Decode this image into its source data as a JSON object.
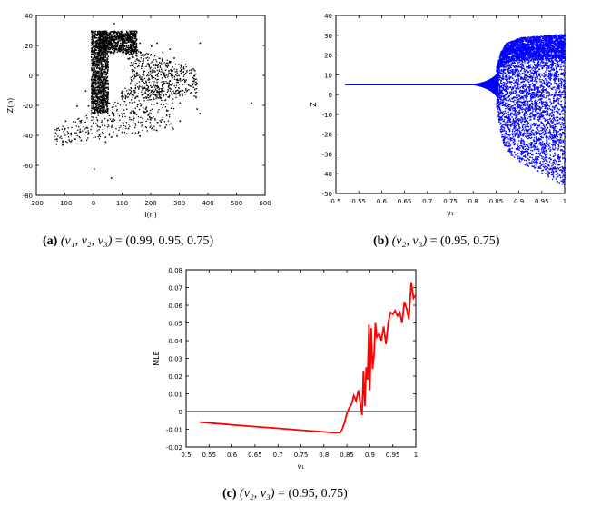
{
  "captions": {
    "a": {
      "label": "(a)",
      "vars": "(ν₁, ν₂, ν₃)",
      "eq": " = ",
      "vals": "(0.99, 0.95, 0.75)"
    },
    "b": {
      "label": "(b)",
      "vars": "(ν₂, ν₃)",
      "eq": " = ",
      "vals": "(0.95, 0.75)"
    },
    "c": {
      "label": "(c)",
      "vars": "(ν₂, ν₃)",
      "eq": " = ",
      "vals": "(0.95, 0.75)"
    }
  },
  "chart_data": [
    {
      "id": "a",
      "type": "scatter",
      "title": "",
      "xlabel": "I(n)",
      "ylabel": "Z(n)",
      "xlim": [
        -200,
        600
      ],
      "ylim": [
        -80,
        40
      ],
      "xticks": [
        "-200",
        "-100",
        "0",
        "100",
        "200",
        "300",
        "400",
        "500",
        "600"
      ],
      "yticks": [
        "-80",
        "-60",
        "-40",
        "-20",
        "0",
        "20",
        "40"
      ],
      "color": "#000000",
      "points": [
        [
          0,
          -10
        ],
        [
          -20,
          -20
        ],
        [
          -50,
          -30
        ],
        [
          -90,
          -38
        ],
        [
          -110,
          -44
        ],
        [
          -130,
          -42
        ],
        [
          -100,
          -30
        ],
        [
          -60,
          -20
        ],
        [
          -30,
          -10
        ],
        [
          0,
          0
        ],
        [
          10,
          10
        ],
        [
          15,
          20
        ],
        [
          20,
          28
        ],
        [
          40,
          30
        ],
        [
          80,
          28
        ],
        [
          120,
          24
        ],
        [
          160,
          22
        ],
        [
          200,
          20
        ],
        [
          240,
          16
        ],
        [
          280,
          12
        ],
        [
          320,
          8
        ],
        [
          340,
          4
        ],
        [
          350,
          0
        ],
        [
          330,
          -6
        ],
        [
          300,
          -10
        ],
        [
          260,
          -14
        ],
        [
          220,
          -18
        ],
        [
          180,
          -22
        ],
        [
          140,
          -24
        ],
        [
          100,
          -26
        ],
        [
          60,
          -30
        ],
        [
          20,
          -34
        ],
        [
          -20,
          -38
        ],
        [
          -70,
          -42
        ],
        [
          -110,
          -46
        ],
        [
          100,
          -10
        ],
        [
          150,
          -5
        ],
        [
          200,
          0
        ],
        [
          250,
          4
        ],
        [
          300,
          -2
        ],
        [
          120,
          -35
        ],
        [
          80,
          -40
        ],
        [
          40,
          -44
        ],
        [
          60,
          -68
        ],
        [
          0,
          -62
        ],
        [
          220,
          22
        ],
        [
          265,
          18
        ],
        [
          300,
          -18
        ],
        [
          170,
          10
        ],
        [
          130,
          15
        ],
        [
          90,
          18
        ],
        [
          50,
          22
        ],
        [
          30,
          5
        ],
        [
          35,
          -5
        ],
        [
          360,
          -5
        ],
        [
          300,
          -30
        ],
        [
          200,
          -28
        ],
        [
          160,
          -40
        ],
        [
          360,
          -22
        ],
        [
          370,
          -25
        ],
        [
          70,
          35
        ],
        [
          370,
          22
        ],
        [
          550,
          -18
        ]
      ],
      "cloud": {
        "vertical_band": {
          "x": [
            -10,
            50
          ],
          "y": [
            -25,
            30
          ]
        },
        "top_mass": {
          "x": [
            15,
            150
          ],
          "y": [
            15,
            30
          ]
        },
        "right_lobe": {
          "x": [
            90,
            360
          ],
          "y": [
            -15,
            22
          ]
        },
        "lower_tail": {
          "x": [
            -140,
            280
          ],
          "y": [
            -46,
            -5
          ]
        },
        "hole_center": [
          90,
          3
        ],
        "hole_radius": [
          38,
          13
        ]
      }
    },
    {
      "id": "b",
      "type": "scatter",
      "title": "",
      "xlabel": "ν₁",
      "ylabel": "Z",
      "xlim": [
        0.5,
        1.0
      ],
      "ylim": [
        -50,
        40
      ],
      "xticks": [
        "0.5",
        "0.55",
        "0.6",
        "0.65",
        "0.7",
        "0.75",
        "0.8",
        "0.85",
        "0.9",
        "0.95",
        "1"
      ],
      "yticks": [
        "-50",
        "-40",
        "-30",
        "-20",
        "-10",
        "0",
        "10",
        "20",
        "30",
        "40"
      ],
      "color": "#0000ff",
      "fixed_point_z": 5,
      "line_start": 0.52,
      "bifurcation_at": 0.855,
      "envelope": {
        "nu": [
          0.85,
          0.86,
          0.87,
          0.9,
          0.95,
          1.0
        ],
        "upper": [
          14,
          22,
          26,
          29,
          30,
          31
        ],
        "lower": [
          -6,
          -20,
          -28,
          -34,
          -40,
          -46
        ]
      }
    },
    {
      "id": "c",
      "type": "line",
      "title": "",
      "xlabel": "ν₁",
      "ylabel": "MLE",
      "xlim": [
        0.5,
        1.0
      ],
      "ylim": [
        -0.02,
        0.08
      ],
      "xticks": [
        "0.5",
        "0.55",
        "0.6",
        "0.65",
        "0.7",
        "0.75",
        "0.8",
        "0.85",
        "0.9",
        "0.95",
        "1"
      ],
      "yticks": [
        "-0.02",
        "-0.01",
        "0",
        "0.01",
        "0.02",
        "0.03",
        "0.04",
        "0.05",
        "0.06",
        "0.07",
        "0.08"
      ],
      "series": [
        {
          "name": "",
          "color": "#ff0000",
          "x": [
            0.53,
            0.6,
            0.65,
            0.7,
            0.75,
            0.8,
            0.825,
            0.835,
            0.84,
            0.845,
            0.85,
            0.855,
            0.86,
            0.865,
            0.87,
            0.875,
            0.88,
            0.883,
            0.886,
            0.889,
            0.892,
            0.895,
            0.898,
            0.9,
            0.903,
            0.906,
            0.909,
            0.912,
            0.915,
            0.92,
            0.925,
            0.93,
            0.935,
            0.94,
            0.945,
            0.95,
            0.955,
            0.96,
            0.965,
            0.97,
            0.975,
            0.98,
            0.985,
            0.99,
            0.995,
            1.0
          ],
          "y": [
            -0.006,
            -0.0075,
            -0.0085,
            -0.0095,
            -0.0105,
            -0.0115,
            -0.012,
            -0.0118,
            -0.01,
            -0.006,
            -0.001,
            0.002,
            0.004,
            0.009,
            0.006,
            0.012,
            0.003,
            -0.002,
            0.023,
            0.003,
            0.025,
            0.018,
            0.049,
            0.012,
            0.047,
            0.024,
            0.032,
            0.05,
            0.042,
            0.044,
            0.04,
            0.048,
            0.038,
            0.05,
            0.056,
            0.055,
            0.057,
            0.054,
            0.056,
            0.05,
            0.062,
            0.058,
            0.052,
            0.073,
            0.064,
            0.066
          ]
        },
        {
          "name": "",
          "color": "#000000",
          "x": [
            0.5,
            1.0
          ],
          "y": [
            0,
            0
          ]
        }
      ]
    }
  ]
}
